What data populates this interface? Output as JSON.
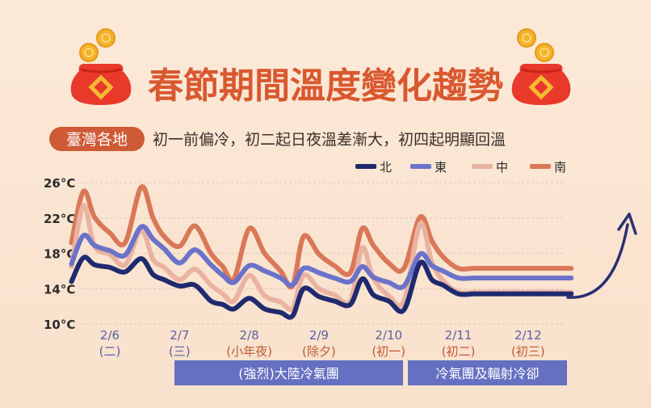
{
  "header": {
    "title": "春節期間溫度變化趨勢",
    "region_tag": "臺灣各地",
    "subtitle": "初一前偏冷，初二起日夜溫差漸大，初四起明顯回溫"
  },
  "colors": {
    "north": "#1f2a6e",
    "east": "#6b72c9",
    "central": "#e9b3a0",
    "south": "#d97858",
    "title": "#d9582f",
    "band": "#6570c2",
    "date_label": "#5a5fa6",
    "holiday_label": "#c45a35",
    "gridline": "#d8c7b8",
    "tag_bg": "#cf5a36"
  },
  "icons": {
    "left": "red-envelope-icon",
    "right": "red-envelope-icon",
    "trend": "curved-arrow-up-icon"
  },
  "bands": [
    {
      "label": "(強烈)大陸冷氣團",
      "from_day": 7,
      "to_day": 10.5
    },
    {
      "label": "冷氣團及輻射冷卻",
      "from_day": 10.5,
      "to_day": 12.5
    }
  ],
  "chart_data": {
    "type": "line",
    "title": "",
    "y_unit": "°C",
    "ylim": [
      10,
      26
    ],
    "yticks": [
      "10°C",
      "14°C",
      "18°C",
      "22°C",
      "26°C"
    ],
    "grid": true,
    "legend_position": "top-right",
    "x_labels": [
      {
        "date": "2/6",
        "sub": "(二)"
      },
      {
        "date": "2/7",
        "sub": "(三)"
      },
      {
        "date": "2/8",
        "sub": "(小年夜)"
      },
      {
        "date": "2/9",
        "sub": "(除夕)"
      },
      {
        "date": "2/10",
        "sub": "(初一)"
      },
      {
        "date": "2/11",
        "sub": "(初二)"
      },
      {
        "date": "2/12",
        "sub": "(初三)"
      }
    ],
    "x": [
      5.45,
      5.62,
      5.78,
      6.0,
      6.22,
      6.45,
      6.62,
      6.78,
      7.0,
      7.22,
      7.45,
      7.62,
      7.78,
      8.0,
      8.22,
      8.45,
      8.62,
      8.78,
      9.0,
      9.22,
      9.45,
      9.62,
      9.78,
      10.0,
      10.22,
      10.45,
      10.62,
      10.78,
      11.0,
      11.22,
      11.45,
      11.62,
      11.78,
      12.0,
      12.22,
      12.45,
      12.62
    ],
    "series": [
      {
        "name": "北",
        "values": [
          14.8,
          17.5,
          16.7,
          16.4,
          15.9,
          17.4,
          15.6,
          15.0,
          14.3,
          14.4,
          12.6,
          12.2,
          11.7,
          12.9,
          11.7,
          11.3,
          10.9,
          14.0,
          13.1,
          12.6,
          12.2,
          15.1,
          13.3,
          12.6,
          11.6,
          16.9,
          15.0,
          14.4,
          13.4,
          13.4,
          13.4,
          13.4,
          13.4,
          13.4,
          13.4,
          13.4,
          13.4
        ]
      },
      {
        "name": "東",
        "values": [
          16.8,
          20.0,
          18.9,
          18.3,
          17.8,
          21.0,
          19.6,
          18.5,
          16.9,
          18.4,
          16.7,
          15.5,
          14.7,
          16.6,
          16.0,
          15.2,
          14.4,
          16.3,
          15.8,
          15.2,
          14.8,
          16.5,
          15.3,
          14.7,
          14.3,
          17.9,
          16.6,
          16.0,
          15.2,
          15.2,
          15.2,
          15.2,
          15.2,
          15.2,
          15.2,
          15.2,
          15.2
        ]
      },
      {
        "name": "中",
        "values": [
          16.5,
          23.4,
          18.8,
          17.9,
          16.7,
          20.6,
          17.3,
          16.4,
          15.0,
          16.2,
          14.4,
          13.4,
          12.6,
          15.5,
          13.2,
          12.5,
          11.8,
          15.5,
          14.0,
          13.3,
          12.6,
          18.6,
          15.2,
          13.2,
          12.6,
          21.3,
          17.0,
          14.9,
          13.6,
          13.6,
          13.6,
          13.6,
          13.6,
          13.6,
          13.6,
          13.6,
          13.6
        ]
      },
      {
        "name": "南",
        "values": [
          19.2,
          25.0,
          22.1,
          20.3,
          19.2,
          25.5,
          22.0,
          19.9,
          18.8,
          21.1,
          18.0,
          16.5,
          15.1,
          20.8,
          18.0,
          16.0,
          14.3,
          19.9,
          17.9,
          16.6,
          15.8,
          20.8,
          18.9,
          16.9,
          16.3,
          22.1,
          19.4,
          17.6,
          16.3,
          16.3,
          16.3,
          16.3,
          16.3,
          16.3,
          16.3,
          16.3,
          16.3
        ]
      }
    ]
  }
}
